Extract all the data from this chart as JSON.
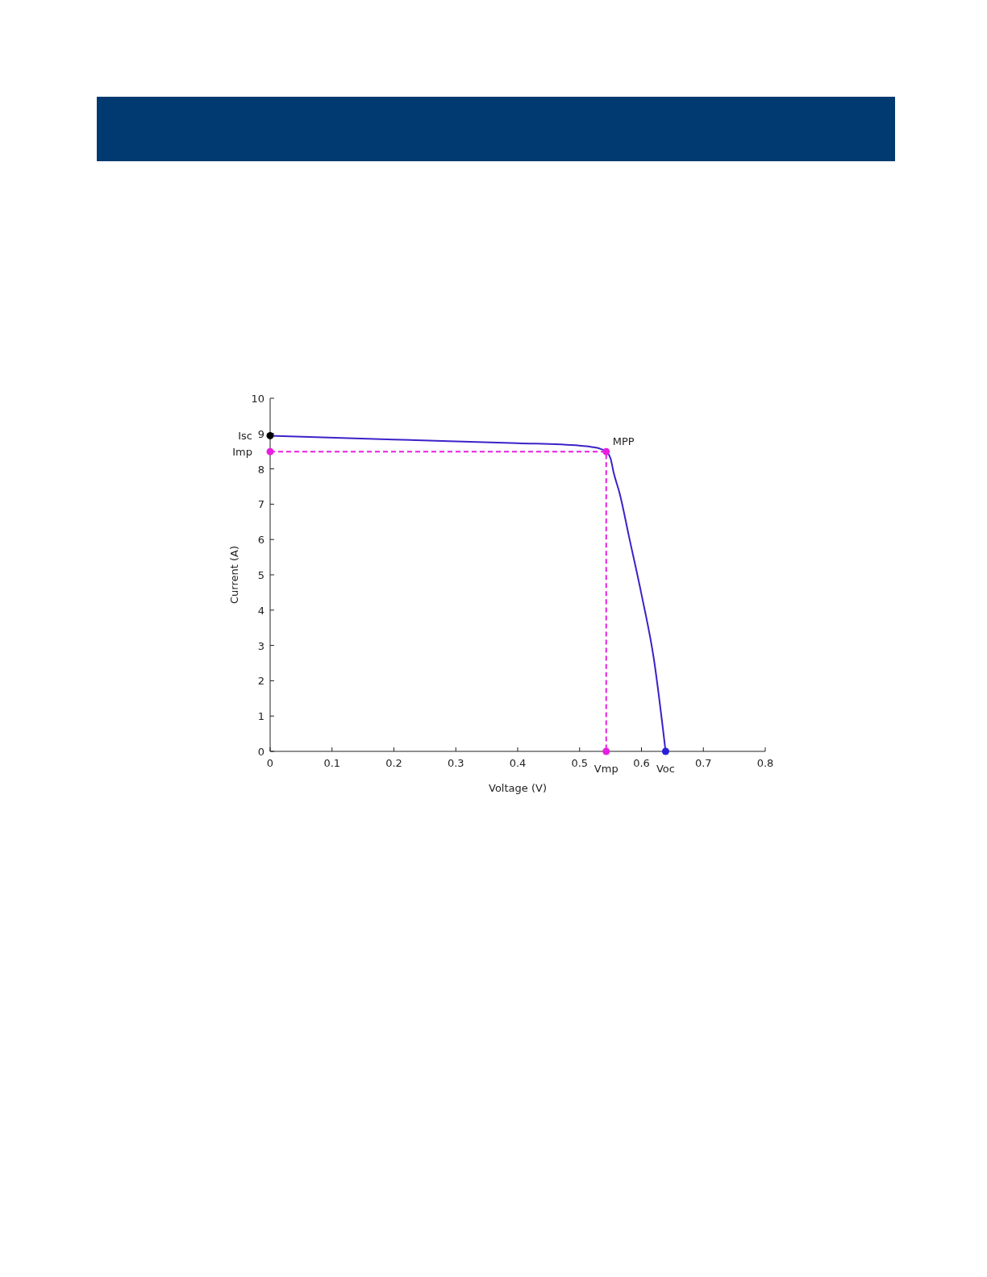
{
  "chart_data": {
    "type": "line",
    "xlabel": "Voltage (V)",
    "ylabel": "Current (A)",
    "xlim": [
      0,
      0.8
    ],
    "xticks": [
      0,
      0.1,
      0.2,
      0.3,
      0.4,
      0.5,
      0.6,
      0.7,
      0.8
    ],
    "ylim": [
      0,
      10
    ],
    "yticks": [
      0,
      1,
      2,
      3,
      4,
      5,
      6,
      7,
      8,
      9,
      10
    ],
    "grid": false,
    "series": [
      {
        "type": "line",
        "color": "#3b22c8",
        "line_style": "solid",
        "marker": "none",
        "x": [
          0,
          0.2,
          0.4,
          0.5,
          0.52,
          0.535,
          0.543,
          0.55,
          0.555,
          0.565,
          0.58,
          0.6,
          0.62,
          0.639
        ],
        "values": [
          8.94,
          8.83,
          8.73,
          8.66,
          8.62,
          8.56,
          8.49,
          8.3,
          7.9,
          7.29,
          6.07,
          4.45,
          2.62,
          0
        ]
      },
      {
        "type": "line",
        "color": "#e81ee0",
        "line_style": "dashed",
        "marker": "none",
        "x": [
          0,
          0.543,
          0.543
        ],
        "values": [
          8.49,
          8.49,
          0
        ]
      },
      {
        "type": "scatter",
        "marker": "circle",
        "colors": [
          "#000000",
          "#e81ee0",
          "#e81ee0",
          "#e81ee0",
          "#2a1fd8"
        ],
        "x": [
          0,
          0,
          0.543,
          0.543,
          0.639
        ],
        "values": [
          8.94,
          8.49,
          8.49,
          0,
          0
        ]
      }
    ],
    "annotations": [
      {
        "text": "Isc",
        "x": 0,
        "y": 8.94
      },
      {
        "text": "Imp",
        "x": 0,
        "y": 8.49
      },
      {
        "text": "MPP",
        "x": 0.543,
        "y": 8.49
      },
      {
        "text": "Vmp",
        "x": 0.543,
        "y": 0
      },
      {
        "text": "Voc",
        "x": 0.639,
        "y": 0
      }
    ]
  }
}
